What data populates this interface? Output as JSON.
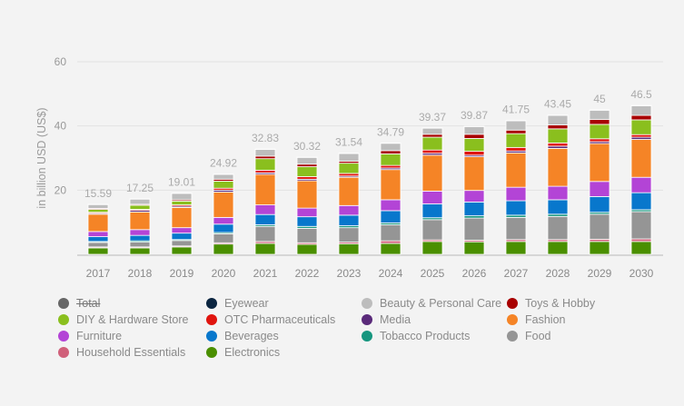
{
  "chart_data": {
    "type": "bar",
    "stacked": true,
    "title": "",
    "xlabel": "",
    "ylabel": "in billion USD (US$)",
    "ylim": [
      0,
      60
    ],
    "yticks": [
      20,
      40,
      60
    ],
    "grid": true,
    "legend_position": "bottom",
    "categories": [
      "2017",
      "2018",
      "2019",
      "2020",
      "2021",
      "2022",
      "2023",
      "2024",
      "2025",
      "2026",
      "2027",
      "2028",
      "2029",
      "2030"
    ],
    "totals": [
      "15.59",
      "17.25",
      "19.01",
      "24.92",
      "32.83",
      "30.32",
      "31.54",
      "34.79",
      "39.37",
      "39.87",
      "41.75",
      "43.45",
      "45",
      "46.5"
    ],
    "total_series": {
      "name": "Total",
      "color": "#666666",
      "hidden": true
    },
    "series": [
      {
        "name": "Electronics",
        "color": "#4a8f00",
        "values": [
          2.0,
          2.0,
          2.3,
          3.2,
          3.4,
          3.1,
          3.3,
          3.4,
          4.0,
          3.9,
          4.0,
          4.0,
          4.0,
          4.0
        ]
      },
      {
        "name": "Household Essentials",
        "color": "#d0607a",
        "values": [
          0.3,
          0.3,
          0.3,
          0.4,
          0.6,
          0.5,
          0.5,
          0.8,
          0.5,
          0.5,
          0.6,
          0.6,
          0.7,
          0.8
        ]
      },
      {
        "name": "Food",
        "color": "#959595",
        "values": [
          1.4,
          1.5,
          1.7,
          2.8,
          4.7,
          4.5,
          4.5,
          5.0,
          6.3,
          6.9,
          6.9,
          7.2,
          7.8,
          8.5
        ]
      },
      {
        "name": "Tobacco Products",
        "color": "#16967f",
        "values": [
          0.3,
          0.4,
          0.3,
          0.4,
          0.5,
          0.6,
          0.6,
          0.6,
          0.6,
          0.7,
          0.7,
          0.7,
          0.6,
          0.6
        ]
      },
      {
        "name": "Beverages",
        "color": "#0877cc",
        "values": [
          1.5,
          1.7,
          2.0,
          2.6,
          3.2,
          3.0,
          3.3,
          3.8,
          4.3,
          4.3,
          4.5,
          4.5,
          4.9,
          5.3
        ]
      },
      {
        "name": "Furniture",
        "color": "#b344d6",
        "values": [
          1.6,
          1.8,
          1.7,
          2.1,
          3.0,
          2.7,
          3.0,
          3.4,
          4.0,
          3.6,
          4.2,
          4.2,
          4.7,
          4.8
        ]
      },
      {
        "name": "Fashion",
        "color": "#f58426",
        "values": [
          5.4,
          5.5,
          6.3,
          7.9,
          9.5,
          8.5,
          8.8,
          9.4,
          11.2,
          10.5,
          10.7,
          11.8,
          11.8,
          11.8
        ]
      },
      {
        "name": "Media",
        "color": "#5a2a7a",
        "values": [
          0.3,
          0.5,
          0.4,
          0.6,
          0.5,
          0.5,
          0.4,
          0.5,
          0.6,
          0.5,
          0.6,
          0.7,
          0.6,
          0.7
        ]
      },
      {
        "name": "OTC Pharmaceuticals",
        "color": "#e0140e",
        "values": [
          0.3,
          0.3,
          0.4,
          0.6,
          0.8,
          0.8,
          0.8,
          0.8,
          1.0,
          1.2,
          1.1,
          1.0,
          0.9,
          0.8
        ]
      },
      {
        "name": "DIY & Hardware Store",
        "color": "#8abf1e",
        "values": [
          0.9,
          1.3,
          1.2,
          2.2,
          3.6,
          3.1,
          3.2,
          3.6,
          4.0,
          4.0,
          4.3,
          4.4,
          4.5,
          4.6
        ]
      },
      {
        "name": "Toys & Hobby",
        "color": "#a80000",
        "values": [
          0.3,
          0.3,
          0.4,
          0.6,
          0.8,
          0.8,
          0.6,
          1.0,
          0.9,
          1.3,
          1.1,
          1.2,
          1.5,
          1.4
        ]
      },
      {
        "name": "Beauty & Personal Care",
        "color": "#bdbdbd",
        "values": [
          1.2,
          1.6,
          2.0,
          1.5,
          2.1,
          2.1,
          2.4,
          2.3,
          1.9,
          2.4,
          2.9,
          3.0,
          2.9,
          3.0
        ]
      },
      {
        "name": "Eyewear",
        "color": "#0b2540",
        "values": [
          0.1,
          0.1,
          0.1,
          0.1,
          0.1,
          0.1,
          0.1,
          0.1,
          0.1,
          0.1,
          0.1,
          0.1,
          0.1,
          0.1
        ]
      }
    ],
    "legend_order": [
      "Total",
      "Eyewear",
      "Beauty & Personal Care",
      "Toys & Hobby",
      "DIY & Hardware Store",
      "OTC Pharmaceuticals",
      "Media",
      "Fashion",
      "Furniture",
      "Beverages",
      "Tobacco Products",
      "Food",
      "Household Essentials",
      "Electronics"
    ]
  }
}
